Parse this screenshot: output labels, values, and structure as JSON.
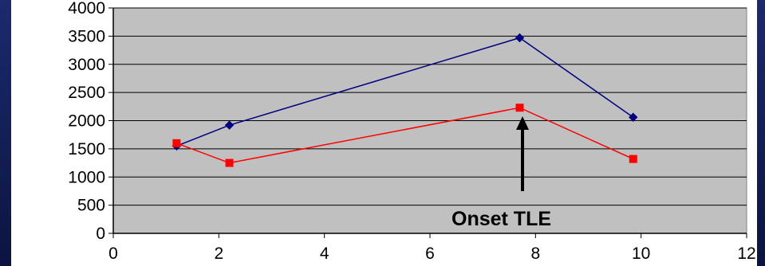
{
  "chart_data": {
    "type": "line",
    "title": "",
    "xlabel": "",
    "ylabel": "",
    "xlim": [
      0,
      12
    ],
    "ylim": [
      0,
      4000
    ],
    "x_ticks": [
      "0",
      "2",
      "4",
      "6",
      "8",
      "10",
      "12"
    ],
    "y_ticks": [
      "0",
      "500",
      "1000",
      "1500",
      "2000",
      "2500",
      "3000",
      "3500",
      "4000"
    ],
    "grid": "horizontal",
    "legend": "none",
    "series": [
      {
        "color": "#000080",
        "marker": "diamond",
        "points": [
          {
            "x": 1.2,
            "y": 1550
          },
          {
            "x": 2.2,
            "y": 1920
          },
          {
            "x": 7.7,
            "y": 3470
          },
          {
            "x": 9.85,
            "y": 2060
          }
        ]
      },
      {
        "color": "#ff0000",
        "marker": "square",
        "points": [
          {
            "x": 1.2,
            "y": 1600
          },
          {
            "x": 2.2,
            "y": 1250
          },
          {
            "x": 7.7,
            "y": 2230
          },
          {
            "x": 9.85,
            "y": 1320
          }
        ]
      }
    ],
    "annotation": {
      "text": "Onset TLE",
      "points_to": {
        "x": 7.7,
        "y": 2230
      }
    }
  },
  "colors": {
    "slide_background": "#14205a",
    "slide_background_edge": "#0a1036",
    "plot_area": "#c0c0c0",
    "chart_area": "#ffffff",
    "gridline": "#000000"
  }
}
